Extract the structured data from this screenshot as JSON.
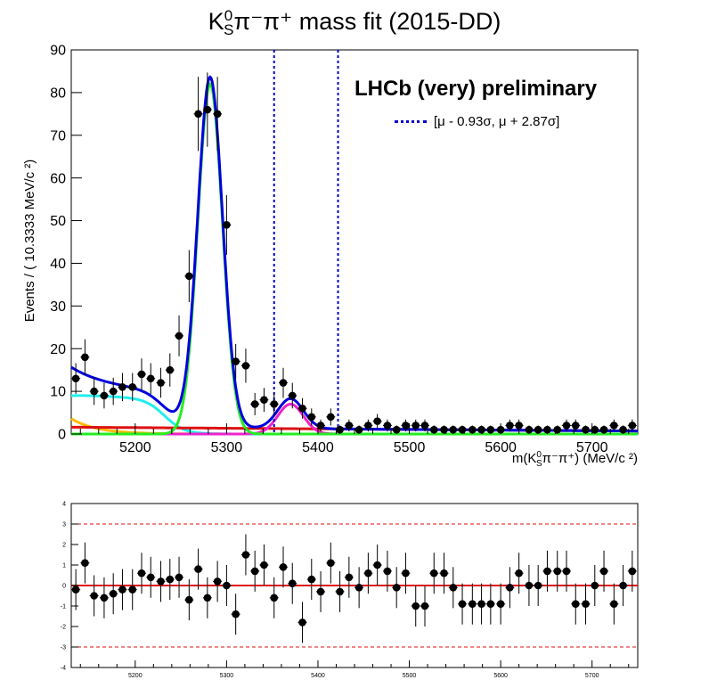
{
  "title_main": "K",
  "title_sup": "0",
  "title_sub": "S",
  "title_rest": "π⁻π⁺ mass fit (2015-DD)",
  "watermark": "LHCb (very) preliminary",
  "legend_text": "[μ - 0.93σ,   μ + 2.87σ]",
  "ylabel": "Events / ( 10.3333 MeV/c  ²)",
  "xlabel": {
    "pre": "m(K",
    "sup": "0",
    "sub": "S",
    "post": "π⁻π⁺) (MeV/c ²)"
  },
  "colors": {
    "total": "#0000dd",
    "signal": "#22ee22",
    "cyan": "#22eeee",
    "magenta": "#ee22cc",
    "combinatorial": "#dd1111",
    "orange": "#ffbb00",
    "window": "#0000cc",
    "pull_line": "#dd1111"
  },
  "chart_data": [
    {
      "type": "scatter",
      "panel": "main",
      "xlim": [
        5130,
        5750
      ],
      "ylim": [
        0,
        90
      ],
      "xticks": [
        5200,
        5300,
        5400,
        5500,
        5600,
        5700
      ],
      "yticks": [
        0,
        10,
        20,
        30,
        40,
        50,
        60,
        70,
        80,
        90
      ],
      "window": [
        5352,
        5422
      ],
      "bin_width": 10.3333,
      "points": {
        "x": [
          5135,
          5145,
          5155,
          5166,
          5176,
          5186,
          5197,
          5207,
          5217,
          5228,
          5238,
          5248,
          5259,
          5269,
          5279,
          5290,
          5300,
          5310,
          5321,
          5331,
          5341,
          5352,
          5362,
          5372,
          5383,
          5393,
          5403,
          5414,
          5424,
          5434,
          5445,
          5455,
          5465,
          5476,
          5486,
          5496,
          5507,
          5517,
          5527,
          5538,
          5548,
          5558,
          5569,
          5579,
          5589,
          5600,
          5610,
          5620,
          5631,
          5641,
          5651,
          5662,
          5672,
          5682,
          5693,
          5703,
          5713,
          5724,
          5734,
          5744
        ],
        "y": [
          13,
          18,
          10,
          9,
          10,
          11,
          11,
          14,
          13,
          12,
          15,
          23,
          37,
          75,
          76,
          75,
          49,
          17,
          16,
          7,
          8,
          7,
          12,
          9,
          6,
          4,
          2,
          4,
          1,
          2,
          1,
          2,
          3,
          2,
          1,
          2,
          2,
          2,
          1,
          1,
          1,
          1,
          1,
          1,
          1,
          1,
          2,
          2,
          1,
          1,
          1,
          1,
          2,
          2,
          1,
          1,
          1,
          2,
          1,
          2
        ],
        "yerr": [
          3.6,
          4.2,
          3.2,
          3,
          3.2,
          3.3,
          3.3,
          3.7,
          3.6,
          3.5,
          3.9,
          4.8,
          6.1,
          8.7,
          8.7,
          8.7,
          7,
          4.1,
          4,
          2.6,
          2.8,
          2.6,
          3.5,
          3,
          2.4,
          2,
          1.4,
          2,
          1,
          1.4,
          1,
          1.4,
          1.7,
          1.4,
          1,
          1.4,
          1.4,
          1.4,
          1,
          1,
          1,
          1,
          1,
          1,
          1,
          1,
          1.4,
          1.4,
          1,
          1,
          1,
          1,
          1.4,
          1.4,
          1,
          1,
          1,
          1.4,
          1,
          1.4
        ]
      }
    },
    {
      "type": "scatter",
      "panel": "pull",
      "xlim": [
        5130,
        5750
      ],
      "ylim": [
        -4,
        4
      ],
      "xticks": [
        5200,
        5300,
        5400,
        5500,
        5600,
        5700
      ],
      "yticks": [
        -4,
        -3,
        -2,
        -1,
        0,
        1,
        2,
        3,
        4
      ],
      "reference_lines": [
        -3,
        0,
        3
      ],
      "points": {
        "x": [
          5135,
          5145,
          5155,
          5166,
          5176,
          5186,
          5197,
          5207,
          5217,
          5228,
          5238,
          5248,
          5259,
          5269,
          5279,
          5290,
          5300,
          5310,
          5321,
          5331,
          5341,
          5352,
          5362,
          5372,
          5383,
          5393,
          5403,
          5414,
          5424,
          5434,
          5445,
          5455,
          5465,
          5476,
          5486,
          5496,
          5507,
          5517,
          5527,
          5538,
          5548,
          5558,
          5569,
          5579,
          5589,
          5600,
          5610,
          5620,
          5631,
          5641,
          5651,
          5662,
          5672,
          5682,
          5693,
          5703,
          5713,
          5724,
          5734,
          5744
        ],
        "y": [
          -0.2,
          1.1,
          -0.5,
          -0.6,
          -0.4,
          -0.2,
          -0.2,
          0.6,
          0.4,
          0.2,
          0.3,
          0.4,
          -0.7,
          0.8,
          -0.6,
          0.2,
          0.0,
          -1.4,
          1.5,
          0.7,
          1.0,
          -0.6,
          0.9,
          0.1,
          -1.8,
          0.3,
          -0.3,
          1.1,
          -0.3,
          0.4,
          -0.1,
          0.6,
          1.0,
          0.7,
          -0.1,
          0.6,
          -1.0,
          -1.0,
          0.6,
          0.6,
          -0.1,
          -0.9,
          -0.9,
          -0.9,
          -0.9,
          -0.9,
          -0.1,
          0.6,
          0.0,
          0.0,
          0.7,
          0.7,
          0.7,
          -0.9,
          -0.9,
          0.0,
          0.7,
          -0.9,
          0.0,
          0.7
        ],
        "yerr": [
          1,
          1,
          1,
          1,
          1,
          1,
          1,
          1,
          1,
          1,
          1,
          1,
          1,
          1,
          1,
          1,
          1,
          1,
          1,
          1,
          1,
          1,
          1,
          1,
          1,
          1,
          1,
          1,
          1,
          1,
          1,
          1,
          1,
          1,
          1,
          1,
          1,
          1,
          1,
          1,
          1,
          1,
          1,
          1,
          1,
          1,
          1,
          1,
          1,
          1,
          1,
          1,
          1,
          1,
          1,
          1,
          1,
          1,
          1,
          1
        ]
      }
    }
  ]
}
